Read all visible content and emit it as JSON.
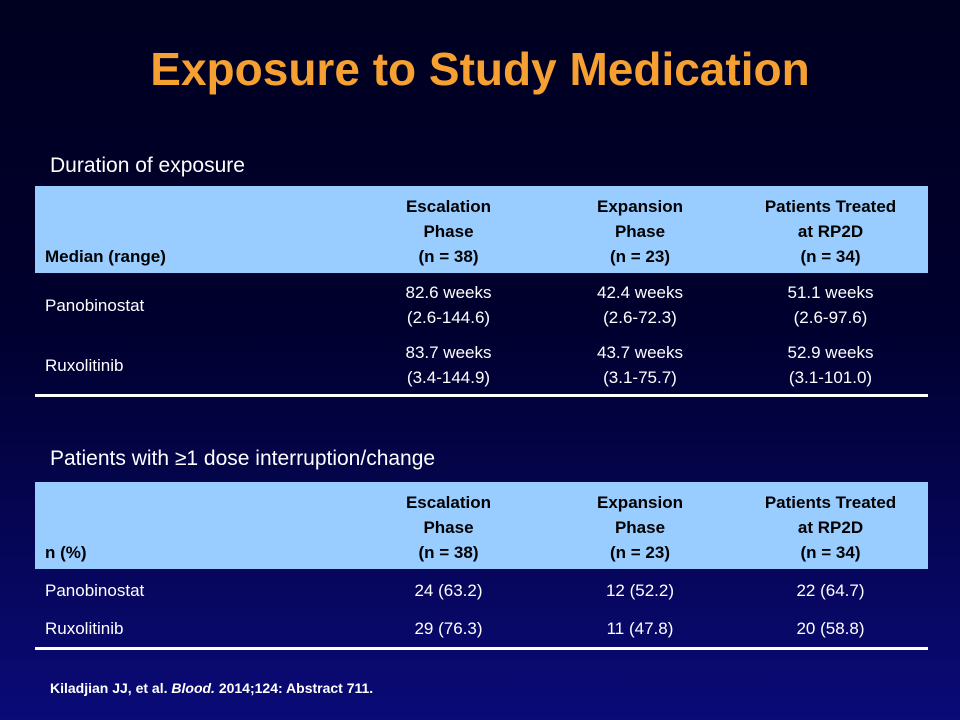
{
  "title": "Exposure to Study Medication",
  "duration": {
    "section_label": "Duration of exposure",
    "row_header": "Median (range)",
    "columns": [
      {
        "line1": "Escalation",
        "line2": "Phase",
        "line3": "(n = 38)"
      },
      {
        "line1": "Expansion",
        "line2": "Phase",
        "line3": "(n = 23)"
      },
      {
        "line1": "Patients Treated",
        "line2": "at RP2D",
        "line3": "(n = 34)"
      }
    ],
    "rows": [
      {
        "label": "Panobinostat",
        "cells": [
          {
            "value": "82.6 weeks",
            "range": "(2.6-144.6)"
          },
          {
            "value": "42.4 weeks",
            "range": "(2.6-72.3)"
          },
          {
            "value": "51.1 weeks",
            "range": "(2.6-97.6)"
          }
        ]
      },
      {
        "label": "Ruxolitinib",
        "cells": [
          {
            "value": "83.7 weeks",
            "range": "(3.4-144.9)"
          },
          {
            "value": "43.7 weeks",
            "range": "(3.1-75.7)"
          },
          {
            "value": "52.9 weeks",
            "range": "(3.1-101.0)"
          }
        ]
      }
    ]
  },
  "interruption": {
    "section_label": "Patients with ≥1 dose interruption/change",
    "row_header": "n (%)",
    "columns": [
      {
        "line1": "Escalation",
        "line2": "Phase",
        "line3": "(n = 38)"
      },
      {
        "line1": "Expansion",
        "line2": "Phase",
        "line3": "(n = 23)"
      },
      {
        "line1": "Patients Treated",
        "line2": "at RP2D",
        "line3": "(n = 34)"
      }
    ],
    "rows": [
      {
        "label": "Panobinostat",
        "cells": [
          "24 (63.2)",
          "12 (52.2)",
          "22 (64.7)"
        ]
      },
      {
        "label": "Ruxolitinib",
        "cells": [
          "29 (76.3)",
          "11 (47.8)",
          "20 (58.8)"
        ]
      }
    ]
  },
  "citation": {
    "authors": "Kiladjian JJ, et al.",
    "journal": "Blood.",
    "details": "2014;124: Abstract 711."
  }
}
